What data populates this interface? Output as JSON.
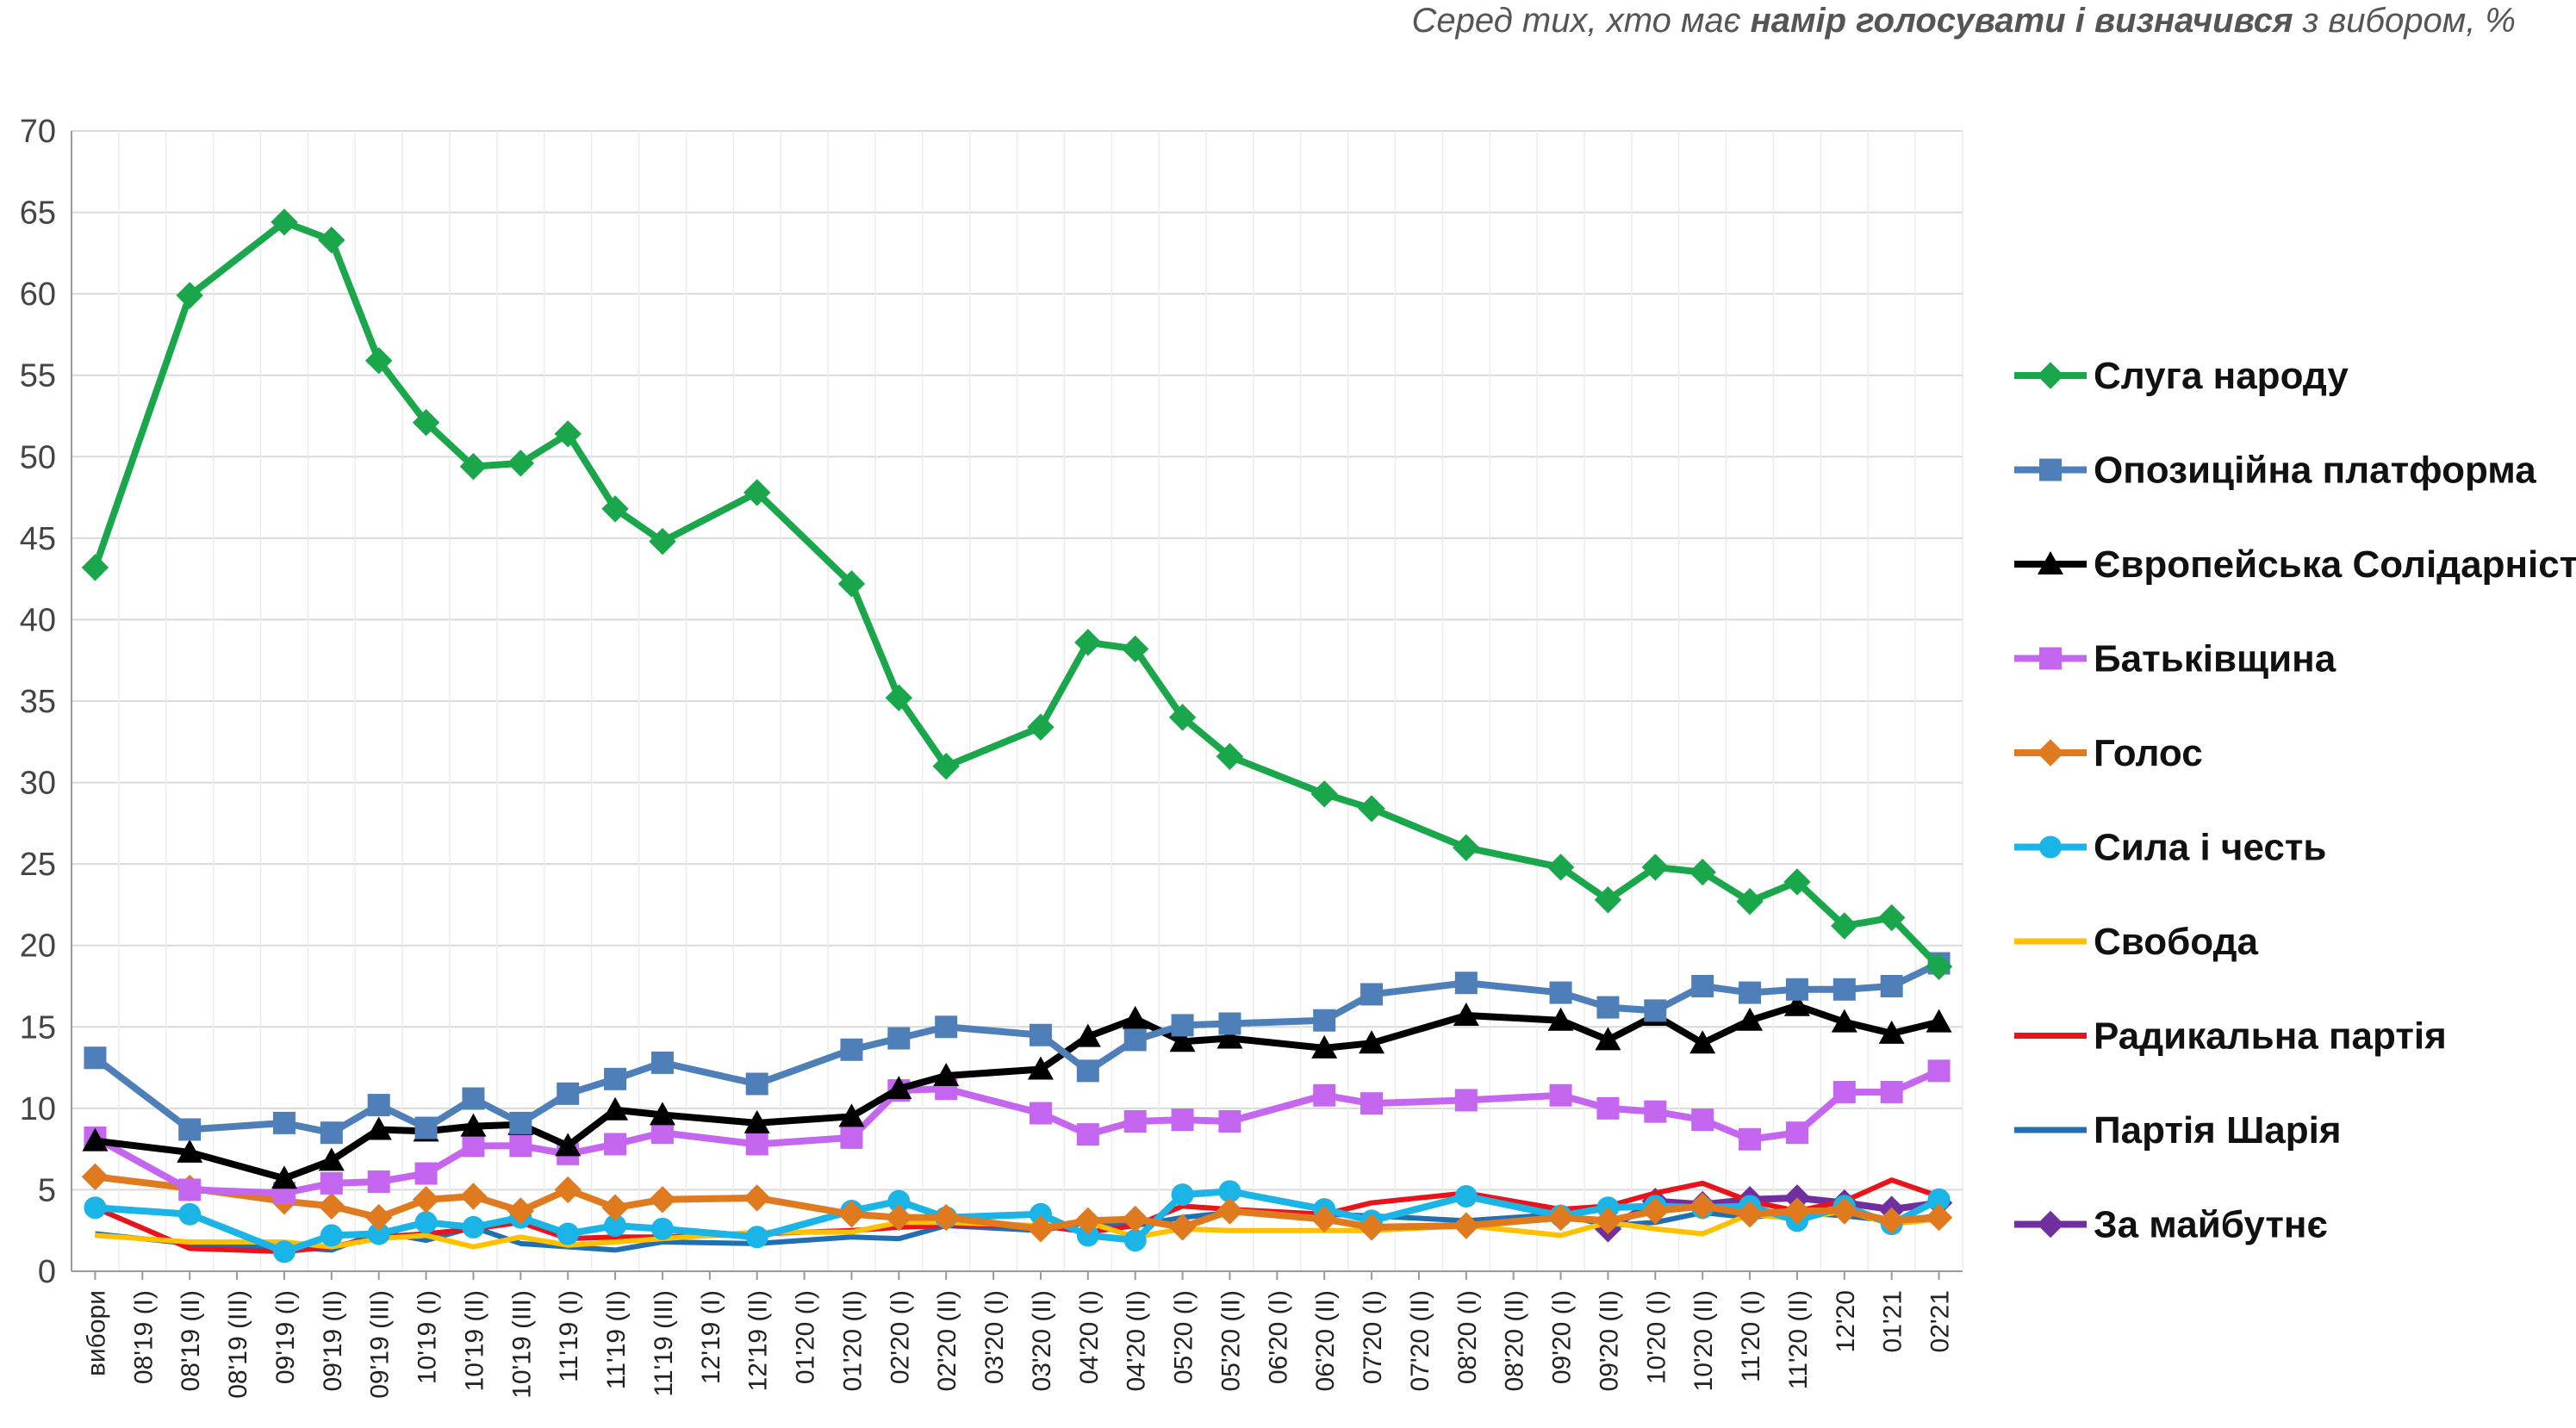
{
  "header": {
    "subtitle_pre": "Серед тих, хто має ",
    "subtitle_bold": "намір голосувати і визначився",
    "subtitle_post": " з вибором, %"
  },
  "chart_data": {
    "type": "line",
    "ylim": [
      0,
      70
    ],
    "yticks": [
      0,
      5,
      10,
      15,
      20,
      25,
      30,
      35,
      40,
      45,
      50,
      55,
      60,
      65,
      70
    ],
    "grid": "horizontal",
    "legend_position": "right",
    "categories": [
      "вибори",
      "08'19 (I)",
      "08'19 (II)",
      "08'19 (III)",
      "09'19 (I)",
      "09'19 (II)",
      "09'19 (III)",
      "10'19 (I)",
      "10'19 (II)",
      "10'19 (III)",
      "11'19 (I)",
      "11'19 (II)",
      "11'19 (III)",
      "12'19 (I)",
      "12'19 (II)",
      "01'20 (I)",
      "01'20 (II)",
      "02'20 (I)",
      "02'20 (II)",
      "03'20 (I)",
      "03'20 (II)",
      "04'20 (I)",
      "04'20 (II)",
      "05'20 (I)",
      "05'20 (II)",
      "06'20 (I)",
      "06'20 (II)",
      "07'20 (I)",
      "07'20 (II)",
      "08'20 (I)",
      "08'20 (II)",
      "09'20 (I)",
      "09'20 (II)",
      "10'20 (I)",
      "10'20 (II)",
      "11'20 (I)",
      "11'20 (II)",
      "12'20",
      "01'21",
      "02'21"
    ],
    "series": [
      {
        "name": "Слуга народу",
        "color": "#1aa64b",
        "marker": "diamond",
        "values": [
          43.2,
          null,
          59.9,
          null,
          64.4,
          63.3,
          55.9,
          52.1,
          49.4,
          49.6,
          51.4,
          46.8,
          44.8,
          null,
          47.8,
          null,
          42.2,
          35.2,
          31.0,
          null,
          33.4,
          38.6,
          38.2,
          34.0,
          31.6,
          null,
          29.3,
          28.4,
          null,
          26.0,
          null,
          24.8,
          22.8,
          24.8,
          24.5,
          22.7,
          23.9,
          21.2,
          21.7,
          18.7
        ]
      },
      {
        "name": "Опозиційна платформа",
        "color": "#4f7fb8",
        "marker": "square",
        "values": [
          13.1,
          null,
          8.7,
          null,
          9.1,
          8.5,
          10.2,
          8.8,
          10.6,
          9.1,
          10.9,
          11.8,
          12.8,
          null,
          11.5,
          null,
          13.6,
          14.3,
          15.0,
          null,
          14.5,
          12.3,
          14.2,
          15.1,
          15.2,
          null,
          15.4,
          17.0,
          null,
          17.7,
          null,
          17.1,
          16.2,
          16.0,
          17.5,
          17.1,
          17.3,
          17.3,
          17.5,
          18.9
        ]
      },
      {
        "name": "Європейська Солідарність",
        "color": "#000000",
        "marker": "triangle",
        "values": [
          8.0,
          null,
          7.3,
          null,
          5.7,
          6.8,
          8.7,
          8.6,
          8.9,
          9.0,
          7.7,
          9.9,
          9.6,
          null,
          9.1,
          null,
          9.5,
          11.2,
          12.0,
          null,
          12.4,
          14.4,
          15.5,
          14.1,
          14.3,
          null,
          13.7,
          14.0,
          null,
          15.7,
          null,
          15.4,
          14.2,
          15.7,
          14.0,
          15.4,
          16.3,
          15.3,
          14.6,
          15.3
        ]
      },
      {
        "name": "Батьківщина",
        "color": "#c566f0",
        "marker": "square",
        "values": [
          8.2,
          null,
          5.0,
          null,
          4.8,
          5.4,
          5.5,
          6.0,
          7.7,
          7.7,
          7.2,
          7.8,
          8.5,
          null,
          7.8,
          null,
          8.2,
          11.1,
          11.2,
          null,
          9.7,
          8.4,
          9.2,
          9.3,
          9.2,
          null,
          10.8,
          10.3,
          null,
          10.5,
          null,
          10.8,
          10.0,
          9.8,
          9.3,
          8.1,
          8.5,
          11.0,
          11.0,
          12.3
        ]
      },
      {
        "name": "Голос",
        "color": "#e07a1f",
        "marker": "diamond",
        "values": [
          5.8,
          null,
          5.1,
          null,
          4.3,
          4.0,
          3.3,
          4.4,
          4.6,
          3.7,
          5.0,
          3.9,
          4.4,
          null,
          4.5,
          null,
          3.5,
          3.3,
          3.3,
          null,
          2.6,
          3.1,
          3.2,
          2.7,
          3.7,
          null,
          3.2,
          2.7,
          null,
          2.8,
          null,
          3.3,
          3.1,
          3.7,
          4.0,
          3.5,
          3.7,
          3.7,
          3.1,
          3.3
        ]
      },
      {
        "name": "Сила і честь",
        "color": "#1ab4e6",
        "marker": "circle",
        "values": [
          3.9,
          null,
          3.5,
          null,
          1.2,
          2.2,
          2.3,
          3.0,
          2.7,
          3.3,
          2.3,
          2.8,
          2.6,
          null,
          2.1,
          null,
          3.7,
          4.3,
          3.3,
          null,
          3.5,
          2.2,
          1.9,
          4.7,
          4.9,
          null,
          3.8,
          3.1,
          null,
          4.6,
          null,
          3.4,
          3.9,
          4.0,
          3.9,
          4.0,
          3.1,
          4.0,
          2.9,
          4.4
        ]
      },
      {
        "name": "Свобода",
        "color": "#ffc000",
        "marker": "none",
        "values": [
          2.2,
          null,
          1.8,
          null,
          1.8,
          1.5,
          2.0,
          2.2,
          1.5,
          2.1,
          1.6,
          1.8,
          2.0,
          null,
          2.4,
          null,
          2.4,
          3.0,
          3.0,
          null,
          2.8,
          3.0,
          2.1,
          2.6,
          2.5,
          null,
          2.5,
          2.5,
          null,
          2.8,
          null,
          2.2,
          3.0,
          2.6,
          2.3,
          3.5,
          3.2,
          3.7,
          2.9,
          3.2
        ]
      },
      {
        "name": "Радикальна партія",
        "color": "#e8141c",
        "marker": "none",
        "values": [
          3.9,
          null,
          1.4,
          null,
          1.2,
          1.5,
          2.1,
          2.3,
          2.6,
          3.0,
          2.0,
          2.1,
          2.1,
          null,
          2.3,
          null,
          2.5,
          2.7,
          2.8,
          null,
          2.8,
          2.4,
          2.8,
          4.0,
          3.8,
          null,
          3.5,
          4.2,
          null,
          4.8,
          null,
          3.8,
          4.0,
          4.8,
          5.4,
          4.3,
          3.7,
          4.3,
          5.6,
          4.6
        ]
      },
      {
        "name": "Партія Шарія",
        "color": "#1f6fb2",
        "marker": "none",
        "values": [
          2.3,
          null,
          1.7,
          null,
          1.5,
          1.3,
          2.4,
          1.9,
          2.7,
          1.7,
          1.5,
          1.3,
          1.8,
          null,
          1.7,
          null,
          2.1,
          2.0,
          2.8,
          null,
          2.5,
          3.0,
          2.8,
          3.3,
          3.6,
          null,
          3.5,
          3.4,
          null,
          3.1,
          null,
          3.5,
          2.8,
          3.0,
          3.6,
          3.3,
          3.6,
          3.4,
          3.1,
          3.4
        ]
      },
      {
        "name": "За майбутнє",
        "color": "#6f2f9f",
        "marker": "diamond",
        "values": [
          null,
          null,
          null,
          null,
          null,
          null,
          null,
          null,
          null,
          null,
          null,
          null,
          null,
          null,
          null,
          null,
          null,
          null,
          null,
          null,
          null,
          null,
          null,
          null,
          null,
          null,
          null,
          null,
          null,
          null,
          null,
          null,
          2.6,
          4.3,
          4.1,
          4.4,
          4.5,
          4.2,
          3.8,
          4.2
        ]
      }
    ]
  }
}
